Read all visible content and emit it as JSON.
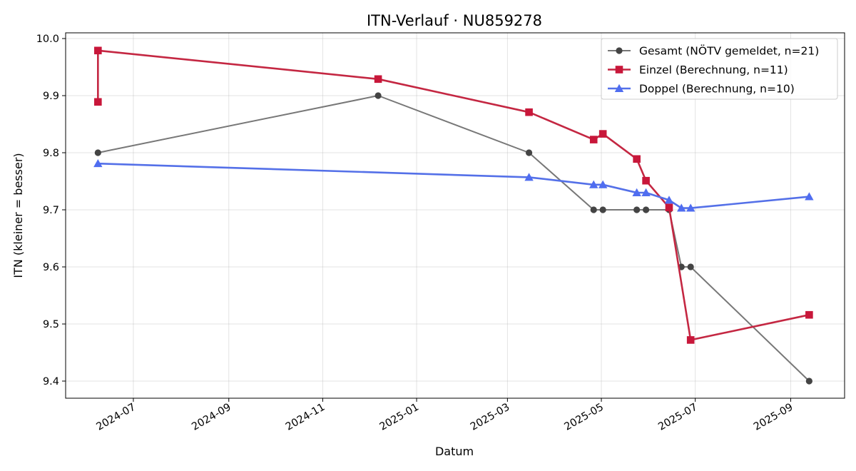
{
  "chart_data": {
    "type": "line",
    "title": "ITN-Verlauf · NU859278",
    "xlabel": "Datum",
    "ylabel": "ITN  (kleiner = besser)",
    "x_type": "date",
    "xlim": [
      "2024-05-18",
      "2025-10-06"
    ],
    "ylim": [
      9.37,
      10.01
    ],
    "x_ticks": [
      "2024-07-01",
      "2024-09-01",
      "2024-11-01",
      "2025-01-01",
      "2025-03-01",
      "2025-05-01",
      "2025-07-01",
      "2025-09-01"
    ],
    "x_tick_labels": [
      "2024-07",
      "2024-09",
      "2024-11",
      "2025-01",
      "2025-03",
      "2025-05",
      "2025-07",
      "2025-09"
    ],
    "y_ticks": [
      9.4,
      9.5,
      9.6,
      9.7,
      9.8,
      9.9,
      10.0
    ],
    "y_tick_labels": [
      "9.4",
      "9.5",
      "9.6",
      "9.7",
      "9.8",
      "9.9",
      "10.0"
    ],
    "grid": true,
    "legend_position": "top-right",
    "series": [
      {
        "name": "Gesamt (NÖTV gemeldet, n=21)",
        "color": "#777777",
        "marker_color": "#444444",
        "marker": "circle",
        "points": [
          {
            "x": "2024-06-08",
            "y": 9.8
          },
          {
            "x": "2024-12-07",
            "y": 9.9
          },
          {
            "x": "2025-03-15",
            "y": 9.8
          },
          {
            "x": "2025-04-26",
            "y": 9.7
          },
          {
            "x": "2025-05-02",
            "y": 9.7
          },
          {
            "x": "2025-05-24",
            "y": 9.7
          },
          {
            "x": "2025-05-30",
            "y": 9.7
          },
          {
            "x": "2025-06-14",
            "y": 9.7
          },
          {
            "x": "2025-06-22",
            "y": 9.6
          },
          {
            "x": "2025-06-28",
            "y": 9.6
          },
          {
            "x": "2025-09-13",
            "y": 9.4
          }
        ]
      },
      {
        "name": "Einzel (Berechnung, n=11)",
        "color": "#c42742",
        "marker_color": "#c8173a",
        "marker": "square",
        "points": [
          {
            "x": "2024-06-08",
            "y": 9.889
          },
          {
            "x": "2024-06-08",
            "y": 9.979
          },
          {
            "x": "2024-12-07",
            "y": 9.929
          },
          {
            "x": "2025-03-15",
            "y": 9.871
          },
          {
            "x": "2025-04-26",
            "y": 9.823
          },
          {
            "x": "2025-05-02",
            "y": 9.833
          },
          {
            "x": "2025-05-24",
            "y": 9.789
          },
          {
            "x": "2025-05-30",
            "y": 9.751
          },
          {
            "x": "2025-06-14",
            "y": 9.704
          },
          {
            "x": "2025-06-28",
            "y": 9.472
          },
          {
            "x": "2025-09-13",
            "y": 9.516
          }
        ]
      },
      {
        "name": "Doppel (Berechnung, n=10)",
        "color": "#5470e8",
        "marker_color": "#4f6df0",
        "marker": "triangle",
        "points": [
          {
            "x": "2024-06-08",
            "y": 9.781
          },
          {
            "x": "2025-03-15",
            "y": 9.757
          },
          {
            "x": "2025-04-26",
            "y": 9.744
          },
          {
            "x": "2025-05-02",
            "y": 9.744
          },
          {
            "x": "2025-05-24",
            "y": 9.73
          },
          {
            "x": "2025-05-30",
            "y": 9.73
          },
          {
            "x": "2025-06-14",
            "y": 9.717
          },
          {
            "x": "2025-06-22",
            "y": 9.703
          },
          {
            "x": "2025-06-28",
            "y": 9.703
          },
          {
            "x": "2025-09-13",
            "y": 9.723
          }
        ]
      }
    ]
  }
}
